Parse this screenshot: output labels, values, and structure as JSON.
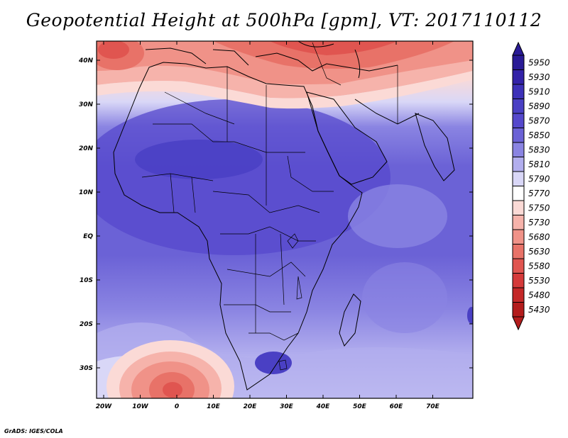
{
  "title": "Geopotential Height at 500hPa [gpm], VT: 2017110112",
  "credit": "GrADS: IGES/COLA",
  "lat_labels": [
    "40N",
    "30N",
    "20N",
    "10N",
    "EQ",
    "10S",
    "20S",
    "30S"
  ],
  "lon_labels": [
    "20W",
    "10W",
    "0",
    "10E",
    "20E",
    "30E",
    "40E",
    "50E",
    "60E",
    "70E"
  ],
  "colorbar": {
    "levels": [
      "5950",
      "5930",
      "5910",
      "5890",
      "5870",
      "5850",
      "5830",
      "5810",
      "5790",
      "5770",
      "5750",
      "5730",
      "5680",
      "5630",
      "5580",
      "5530",
      "5480",
      "5430"
    ],
    "colors": [
      "#2a1b96",
      "#3322a8",
      "#3d31b8",
      "#4a40c4",
      "#5548cc",
      "#6b62d6",
      "#8a84e2",
      "#b2aeee",
      "#d9d7f7",
      "#ffffff",
      "#fbdad6",
      "#f6b3ab",
      "#f09288",
      "#e87268",
      "#e05550",
      "#d53a3a",
      "#c42828",
      "#b31c1c"
    ]
  },
  "map": {
    "field": "geopotential height 500hPa",
    "units": "gpm",
    "region": "Africa, Arabian Peninsula, Indian Ocean, Mediterranean",
    "lon_range": [
      -23,
      80
    ],
    "lat_range": [
      -37,
      46
    ]
  }
}
